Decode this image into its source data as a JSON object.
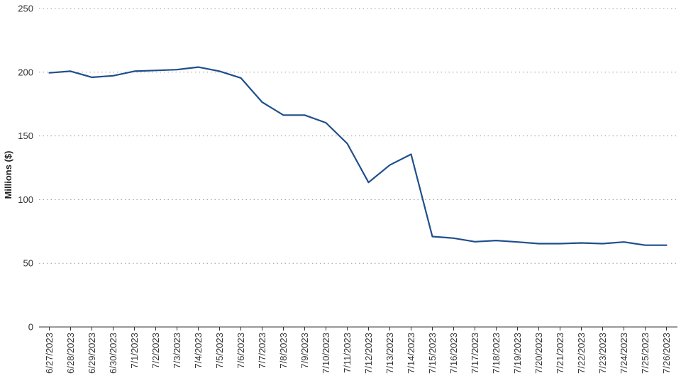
{
  "chart_data": {
    "type": "line",
    "title": "",
    "xlabel": "",
    "ylabel": "Millions ($)",
    "ylim": [
      0,
      250
    ],
    "yticks": [
      0,
      50,
      100,
      150,
      200,
      250
    ],
    "grid": true,
    "legend": "none",
    "colors": {
      "line": "#1f4e8c",
      "grid": "#9a9a9a",
      "axis": "#333333"
    },
    "categories": [
      "6/27/2023",
      "6/28/2023",
      "6/29/2023",
      "6/30/2023",
      "7/1/2023",
      "7/2/2023",
      "7/3/2023",
      "7/4/2023",
      "7/5/2023",
      "7/6/2023",
      "7/7/2023",
      "7/8/2023",
      "7/9/2023",
      "7/10/2023",
      "7/11/2023",
      "7/12/2023",
      "7/13/2023",
      "7/14/2023",
      "7/15/2023",
      "7/16/2023",
      "7/17/2023",
      "7/18/2023",
      "7/19/2023",
      "7/20/2023",
      "7/21/2023",
      "7/22/2023",
      "7/23/2023",
      "7/24/2023",
      "7/25/2023",
      "7/26/2023"
    ],
    "series": [
      {
        "values": [
          199.5,
          200.8,
          196.0,
          197.2,
          200.8,
          201.4,
          202.0,
          204.0,
          200.8,
          195.5,
          176.5,
          166.3,
          166.3,
          160.3,
          144.0,
          113.5,
          127.1,
          135.6,
          71.0,
          69.7,
          66.9,
          67.9,
          66.7,
          65.4,
          65.4,
          66.0,
          65.4,
          66.7,
          64.2,
          64.2
        ]
      }
    ]
  }
}
